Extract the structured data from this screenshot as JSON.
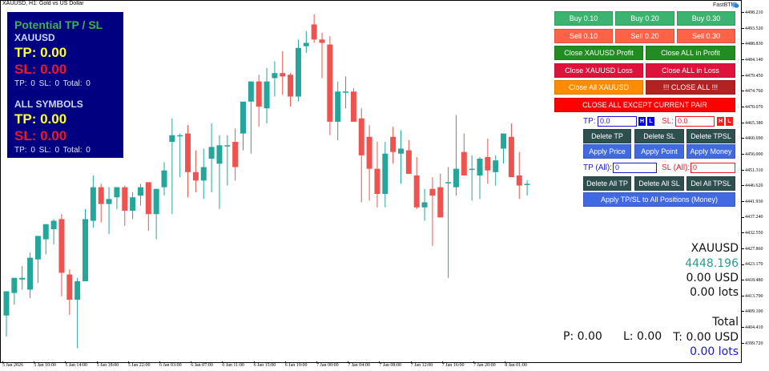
{
  "window": {
    "title": "XAUUSD, H1:  Gold vs US Dollar",
    "plugin_label": "FastBTN",
    "plugin_icon": "chat-bubbles-icon"
  },
  "tpsl_panel": {
    "title": "Potential TP / SL",
    "symbol_section": {
      "label": "XAUUSD",
      "tp": "TP: 0.00",
      "sl": "SL: 0.00",
      "counts": "TP: 0   SL: 0   Total: 0"
    },
    "all_section": {
      "label": "ALL SYMBOLS",
      "tp": "TP: 0.00",
      "sl": "SL: 0.00",
      "counts": "TP: 0   SL: 0   Total: 0"
    }
  },
  "trade_panel": {
    "buy_buttons": [
      "Buy 0.10",
      "Buy 0.20",
      "Buy 0.30"
    ],
    "sell_buttons": [
      "Sell 0.10",
      "Sell 0.20",
      "Sell 0.30"
    ],
    "close_symbol_profit": "Close XAUUSD Profit",
    "close_all_profit": "Close ALL in Profit",
    "close_symbol_loss": "Close XAUUSD Loss",
    "close_all_loss": "Close ALL in Loss",
    "close_all_symbol": "Close All XAUUSD",
    "close_all": "!!! CLOSE ALL !!!",
    "close_all_except": "CLOSE ALL EXCEPT CURRENT PAIR",
    "tp_label": "TP:",
    "tp_value": "0.0",
    "sl_label": "SL:",
    "sl_value": "0.0",
    "h_label": "H",
    "l_label": "L",
    "delete_tp": "Delete TP",
    "delete_sl": "Delete SL",
    "delete_tpsl": "Delete TPSL",
    "apply_price": "Apply Price",
    "apply_point": "Apply Point",
    "apply_money": "Apply Money",
    "tp_all_label": "TP (All):",
    "tp_all_value": "0",
    "sl_all_label": "SL (All):",
    "sl_all_value": "0",
    "delete_all_tp": "Delete All TP",
    "delete_all_sl": "Delete All SL",
    "del_all_tpsl": "Del All TPSL",
    "apply_all_money": "Apply TP/SL to All Positions (Money)"
  },
  "info_panel": {
    "symbol": "XAUUSD",
    "price": "4448.196",
    "pnl": "0.00 USD",
    "lots": "0.00 lots",
    "total_label": "Total",
    "profit": "P: 0.00",
    "loss": "L: 0.00",
    "total": "T: 0.00 USD",
    "total_lots": "0.00 lots"
  },
  "colors": {
    "bull": "#26a69a",
    "bear": "#ef5350",
    "panel_bg": "#000080"
  },
  "y_axis": {
    "ticks": [
      "4498.210",
      "4493.520",
      "4488.830",
      "4484.140",
      "4479.450",
      "4474.760",
      "4470.070",
      "4465.380",
      "4460.690",
      "4456.000",
      "4451.310",
      "4446.620",
      "4441.930",
      "4437.240",
      "4432.550",
      "4427.860",
      "4423.170",
      "4418.480",
      "4413.790",
      "4409.100",
      "4404.410",
      "4399.720"
    ]
  },
  "x_axis": {
    "ticks": [
      "5 Jan 2026",
      "5 Jan 10:00",
      "5 Jan 14:00",
      "5 Jan 18:00",
      "5 Jan 22:00",
      "6 Jan 03:00",
      "6 Jan 07:00",
      "6 Jan 11:00",
      "6 Jan 15:00",
      "6 Jan 19:00",
      "7 Jan 00:00",
      "7 Jan 04:00",
      "7 Jan 08:00",
      "7 Jan 12:00",
      "7 Jan 16:00",
      "7 Jan 20:00",
      "8 Jan 01:00"
    ]
  },
  "chart_data": {
    "type": "candlestick",
    "title": "XAUUSD, H1: Gold vs US Dollar",
    "ylim": [
      4397.0,
      4500.5
    ],
    "note": "OHLC approximated from pixel positions",
    "candles": [
      {
        "o": 4408.3,
        "h": 4412.0,
        "l": 4402.0,
        "c": 4415.5
      },
      {
        "o": 4415.0,
        "h": 4418.5,
        "l": 4411.5,
        "c": 4419.5
      },
      {
        "o": 4419.0,
        "h": 4423.0,
        "l": 4416.0,
        "c": 4419.5
      },
      {
        "o": 4416.0,
        "h": 4427.0,
        "l": 4413.5,
        "c": 4425.5
      },
      {
        "o": 4425.0,
        "h": 4430.0,
        "l": 4418.0,
        "c": 4432.0
      },
      {
        "o": 4431.0,
        "h": 4435.5,
        "l": 4426.5,
        "c": 4435.5
      },
      {
        "o": 4434.0,
        "h": 4437.0,
        "l": 4429.5,
        "c": 4436.5
      },
      {
        "o": 4437.0,
        "h": 4438.5,
        "l": 4414.0,
        "c": 4421.0
      },
      {
        "o": 4420.5,
        "h": 4422.0,
        "l": 4408.5,
        "c": 4413.0
      },
      {
        "o": 4413.0,
        "h": 4419.5,
        "l": 4398.5,
        "c": 4418.5
      },
      {
        "o": 4418.5,
        "h": 4440.0,
        "l": 4418.5,
        "c": 4437.0
      },
      {
        "o": 4436.5,
        "h": 4450.0,
        "l": 4434.5,
        "c": 4446.5
      },
      {
        "o": 4446.5,
        "h": 4447.5,
        "l": 4436.0,
        "c": 4441.5
      },
      {
        "o": 4441.5,
        "h": 4446.5,
        "l": 4432.5,
        "c": 4443.0
      },
      {
        "o": 4443.5,
        "h": 4446.5,
        "l": 4440.0,
        "c": 4446.5
      },
      {
        "o": 4446.5,
        "h": 4447.0,
        "l": 4435.0,
        "c": 4439.5
      },
      {
        "o": 4439.5,
        "h": 4445.0,
        "l": 4437.0,
        "c": 4443.5
      },
      {
        "o": 4444.0,
        "h": 4447.5,
        "l": 4441.0,
        "c": 4446.5
      },
      {
        "o": 4448.0,
        "h": 4447.5,
        "l": 4433.5,
        "c": 4438.5
      },
      {
        "o": 4438.5,
        "h": 4444.5,
        "l": 4431.0,
        "c": 4446.0
      },
      {
        "o": 4446.5,
        "h": 4454.0,
        "l": 4444.0,
        "c": 4451.5
      },
      {
        "o": 4460.0,
        "h": 4467.0,
        "l": 4438.5,
        "c": 4462.0
      },
      {
        "o": 4462.0,
        "h": 4462.5,
        "l": 4449.5,
        "c": 4462.0
      },
      {
        "o": 4462.5,
        "h": 4465.0,
        "l": 4443.5,
        "c": 4451.0
      },
      {
        "o": 4451.0,
        "h": 4457.5,
        "l": 4445.0,
        "c": 4448.5
      },
      {
        "o": 4448.5,
        "h": 4458.0,
        "l": 4443.0,
        "c": 4452.5
      },
      {
        "o": 4455.0,
        "h": 4465.5,
        "l": 4445.0,
        "c": 4458.5
      },
      {
        "o": 4453.5,
        "h": 4462.0,
        "l": 4440.0,
        "c": 4459.0
      },
      {
        "o": 4459.0,
        "h": 4462.0,
        "l": 4447.0,
        "c": 4459.0
      },
      {
        "o": 4460.0,
        "h": 4464.0,
        "l": 4448.5,
        "c": 4452.5
      },
      {
        "o": 4462.5,
        "h": 4465.5,
        "l": 4457.5,
        "c": 4472.0
      },
      {
        "o": 4472.0,
        "h": 4474.0,
        "l": 4456.5,
        "c": 4478.0
      },
      {
        "o": 4478.0,
        "h": 4480.0,
        "l": 4464.5,
        "c": 4470.5
      },
      {
        "o": 4470.0,
        "h": 4482.0,
        "l": 4465.5,
        "c": 4478.0
      },
      {
        "o": 4479.0,
        "h": 4484.0,
        "l": 4473.5,
        "c": 4480.5
      },
      {
        "o": 4480.5,
        "h": 4487.0,
        "l": 4474.0,
        "c": 4479.5
      },
      {
        "o": 4480.0,
        "h": 4480.5,
        "l": 4470.5,
        "c": 4473.5
      },
      {
        "o": 4473.5,
        "h": 4490.5,
        "l": 4472.0,
        "c": 4488.0
      },
      {
        "o": 4488.5,
        "h": 4493.0,
        "l": 4486.5,
        "c": 4489.5
      },
      {
        "o": 4495.0,
        "h": 4498.0,
        "l": 4489.5,
        "c": 4490.5
      },
      {
        "o": 4490.5,
        "h": 4492.5,
        "l": 4479.0,
        "c": 4489.5
      },
      {
        "o": 4489.0,
        "h": 4491.5,
        "l": 4462.0,
        "c": 4466.0
      },
      {
        "o": 4466.0,
        "h": 4478.0,
        "l": 4460.5,
        "c": 4475.0
      },
      {
        "o": 4475.0,
        "h": 4479.5,
        "l": 4470.0,
        "c": 4475.0
      },
      {
        "o": 4475.0,
        "h": 4476.0,
        "l": 4468.0,
        "c": 4466.0
      },
      {
        "o": 4467.0,
        "h": 4470.0,
        "l": 4442.0,
        "c": 4456.0
      },
      {
        "o": 4461.5,
        "h": 4465.0,
        "l": 4442.5,
        "c": 4452.0
      },
      {
        "o": 4452.0,
        "h": 4460.0,
        "l": 4440.5,
        "c": 4444.5
      },
      {
        "o": 4444.5,
        "h": 4460.0,
        "l": 4440.5,
        "c": 4456.5
      },
      {
        "o": 4461.5,
        "h": 4464.5,
        "l": 4453.5,
        "c": 4457.0
      },
      {
        "o": 4456.5,
        "h": 4463.5,
        "l": 4447.5,
        "c": 4458.0
      },
      {
        "o": 4457.5,
        "h": 4460.5,
        "l": 4451.5,
        "c": 4450.5
      },
      {
        "o": 4450.0,
        "h": 4455.5,
        "l": 4440.0,
        "c": 4440.5
      },
      {
        "o": 4440.5,
        "h": 4446.0,
        "l": 4436.5,
        "c": 4442.0
      },
      {
        "o": 4446.0,
        "h": 4449.5,
        "l": 4429.0,
        "c": 4444.0
      },
      {
        "o": 4446.5,
        "h": 4450.5,
        "l": 4437.5,
        "c": 4437.5
      },
      {
        "o": 4448.0,
        "h": 4452.5,
        "l": 4419.5,
        "c": 4448.0
      },
      {
        "o": 4446.5,
        "h": 4468.0,
        "l": 4444.0,
        "c": 4452.0
      },
      {
        "o": 4457.0,
        "h": 4462.5,
        "l": 4450.5,
        "c": 4450.0
      },
      {
        "o": 4452.0,
        "h": 4456.0,
        "l": 4442.5,
        "c": 4452.0
      },
      {
        "o": 4450.0,
        "h": 4455.5,
        "l": 4443.0,
        "c": 4455.0
      },
      {
        "o": 4455.5,
        "h": 4461.0,
        "l": 4447.5,
        "c": 4451.5
      },
      {
        "o": 4451.0,
        "h": 4456.0,
        "l": 4447.0,
        "c": 4454.5
      },
      {
        "o": 4458.0,
        "h": 4461.0,
        "l": 4453.5,
        "c": 4462.5
      },
      {
        "o": 4461.5,
        "h": 4465.5,
        "l": 4450.0,
        "c": 4449.5
      },
      {
        "o": 4450.0,
        "h": 4457.0,
        "l": 4443.0,
        "c": 4447.0
      },
      {
        "o": 4447.5,
        "h": 4448.5,
        "l": 4444.0,
        "c": 4447.5
      }
    ]
  }
}
